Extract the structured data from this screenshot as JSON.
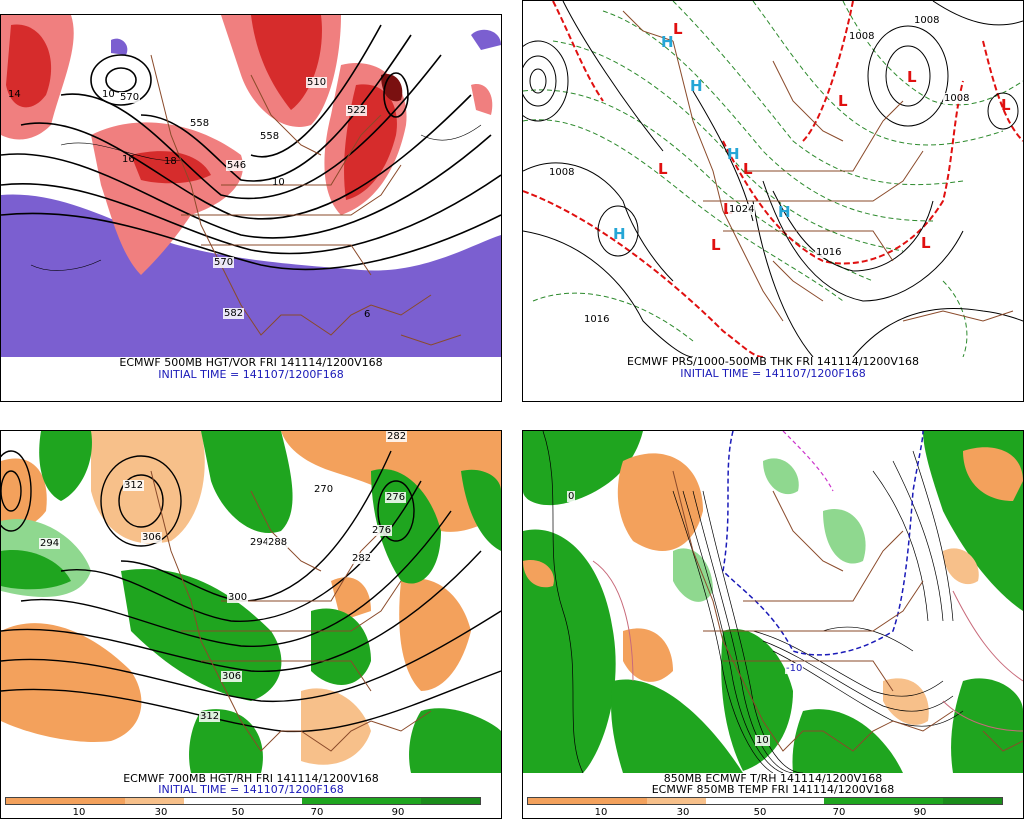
{
  "panels": {
    "p1": {
      "caption": "ECMWF 500MB HGT/VOR FRI 141114/1200V168",
      "initial": "INITIAL TIME = 141107/1200F168",
      "labels": [
        "570",
        "558",
        "546",
        "558",
        "522",
        "510",
        "570",
        "582",
        "14",
        "16",
        "18",
        "10",
        "10",
        "6"
      ]
    },
    "p2": {
      "caption": "ECMWF PRS/1000-500MB THK FRI 141114/1200V168",
      "initial": "INITIAL TIME = 141107/1200F168",
      "labels": [
        "1008",
        "1016",
        "1008",
        "1008",
        "1008",
        "1016",
        "1024"
      ],
      "highs": [
        "H",
        "H",
        "H",
        "H",
        "H"
      ],
      "lows": [
        "L",
        "L",
        "L",
        "L",
        "L",
        "L",
        "L",
        "L",
        "L"
      ]
    },
    "p3": {
      "caption": "ECMWF 700MB HGT/RH FRI 141114/1200V168",
      "initial": "INITIAL TIME = 141107/1200F168",
      "labels": [
        "312",
        "306",
        "294",
        "300",
        "306",
        "312",
        "282",
        "276",
        "270",
        "294",
        "282",
        "288",
        "276"
      ],
      "colorbar_ticks": [
        "10",
        "30",
        "50",
        "70",
        "90"
      ]
    },
    "p4": {
      "caption1": "850MB ECMWF T/RH 141114/1200V168",
      "caption2": "ECMWF 850MB TEMP FRI 141114/1200V168",
      "labels": [
        "-10",
        "0",
        "10"
      ],
      "colorbar_ticks": [
        "10",
        "30",
        "50",
        "70",
        "90"
      ]
    }
  },
  "colors": {
    "vorticity_high": "#d62c2c",
    "vorticity_mid": "#f07f7f",
    "vorticity_neg": "#7b5fd0",
    "rh_moist": "#1fa51f",
    "rh_light_green": "#8fd88f",
    "rh_dry": "#f3a15c",
    "border_brown": "#8a4a2a",
    "isobar_red": "#e01010",
    "thickness_green": "#2d8a2d",
    "caption_blue": "#1a1ab8"
  }
}
